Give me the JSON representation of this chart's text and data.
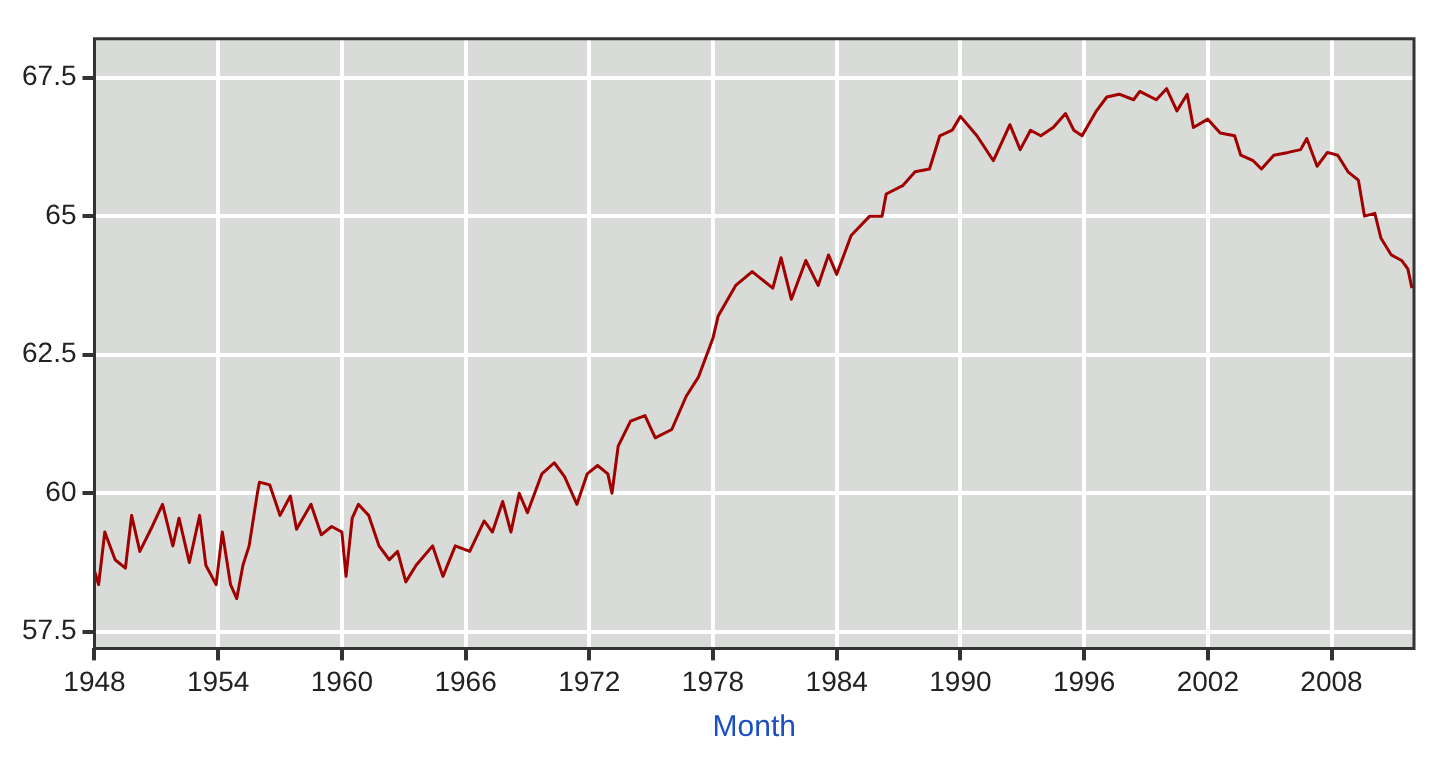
{
  "chart_data": {
    "type": "line",
    "xlabel": "Month",
    "x": [
      1948.0,
      1948.2,
      1948.5,
      1949.0,
      1949.5,
      1949.8,
      1950.2,
      1950.8,
      1951.3,
      1951.8,
      1952.1,
      1952.6,
      1953.1,
      1953.4,
      1953.9,
      1954.2,
      1954.6,
      1954.9,
      1955.2,
      1955.5,
      1955.9,
      1956.0,
      1956.5,
      1957.0,
      1957.5,
      1957.8,
      1958.5,
      1959.0,
      1959.5,
      1960.0,
      1960.2,
      1960.5,
      1960.8,
      1961.3,
      1961.8,
      1962.3,
      1962.7,
      1963.1,
      1963.6,
      1964.4,
      1964.9,
      1965.5,
      1966.2,
      1966.9,
      1967.3,
      1967.8,
      1968.2,
      1968.6,
      1969.0,
      1969.7,
      1970.3,
      1970.8,
      1971.4,
      1971.9,
      1972.4,
      1972.9,
      1973.1,
      1973.4,
      1974.0,
      1974.7,
      1975.2,
      1976.0,
      1976.7,
      1977.3,
      1978.0,
      1978.25,
      1979.1,
      1979.9,
      1980.9,
      1981.3,
      1981.8,
      1982.5,
      1983.1,
      1983.6,
      1984.0,
      1984.7,
      1985.6,
      1986.2,
      1986.4,
      1987.2,
      1987.8,
      1988.5,
      1989.0,
      1989.6,
      1990.0,
      1990.8,
      1991.6,
      1992.4,
      1992.9,
      1993.4,
      1993.9,
      1994.5,
      1995.1,
      1995.5,
      1995.9,
      1996.6,
      1997.1,
      1997.7,
      1998.4,
      1998.7,
      1999.5,
      2000.0,
      2000.5,
      2001.0,
      2001.3,
      2002.0,
      2002.6,
      2003.3,
      2003.6,
      2004.2,
      2004.6,
      2005.2,
      2005.9,
      2006.5,
      2006.8,
      2007.3,
      2007.8,
      2008.3,
      2008.8,
      2009.3,
      2009.6,
      2010.1,
      2010.4,
      2010.9,
      2011.4,
      2011.7,
      2011.9
    ],
    "series": [
      {
        "color": "#a00000",
        "values": [
          58.6,
          58.35,
          59.3,
          58.8,
          58.65,
          59.6,
          58.95,
          59.4,
          59.8,
          59.05,
          59.55,
          58.75,
          59.6,
          58.7,
          58.35,
          59.3,
          58.35,
          58.1,
          58.7,
          59.05,
          60.0,
          60.2,
          60.15,
          59.6,
          59.95,
          59.35,
          59.8,
          59.25,
          59.4,
          59.3,
          58.5,
          59.55,
          59.8,
          59.6,
          59.05,
          58.8,
          58.95,
          58.4,
          58.7,
          59.05,
          58.5,
          59.05,
          58.95,
          59.5,
          59.3,
          59.85,
          59.3,
          60.0,
          59.65,
          60.35,
          60.55,
          60.3,
          59.8,
          60.35,
          60.5,
          60.35,
          60.0,
          60.85,
          61.3,
          61.4,
          61.0,
          61.15,
          61.75,
          62.1,
          62.8,
          63.2,
          63.75,
          64.0,
          63.7,
          64.25,
          63.5,
          64.2,
          63.75,
          64.3,
          63.95,
          64.65,
          65.0,
          65.0,
          65.4,
          65.55,
          65.8,
          65.85,
          66.45,
          66.55,
          66.8,
          66.45,
          66.0,
          66.65,
          66.2,
          66.55,
          66.45,
          66.6,
          66.85,
          66.55,
          66.45,
          66.9,
          67.15,
          67.2,
          67.1,
          67.25,
          67.1,
          67.3,
          66.9,
          67.2,
          66.6,
          66.75,
          66.5,
          66.45,
          66.1,
          66.0,
          65.85,
          66.1,
          66.15,
          66.2,
          66.4,
          65.9,
          66.15,
          66.1,
          65.8,
          65.65,
          65.0,
          65.05,
          64.6,
          64.3,
          64.2,
          64.05,
          63.7
        ]
      }
    ],
    "xlim": [
      1948,
      2012
    ],
    "xticks": [
      1948,
      1954,
      1960,
      1966,
      1972,
      1978,
      1984,
      1990,
      1996,
      2002,
      2008
    ],
    "ylim": [
      57.2,
      68.2
    ],
    "yticks": [
      57.5,
      60,
      62.5,
      65,
      67.5
    ],
    "grid": true,
    "marker": "none",
    "line_style": "solid",
    "legend": false
  }
}
